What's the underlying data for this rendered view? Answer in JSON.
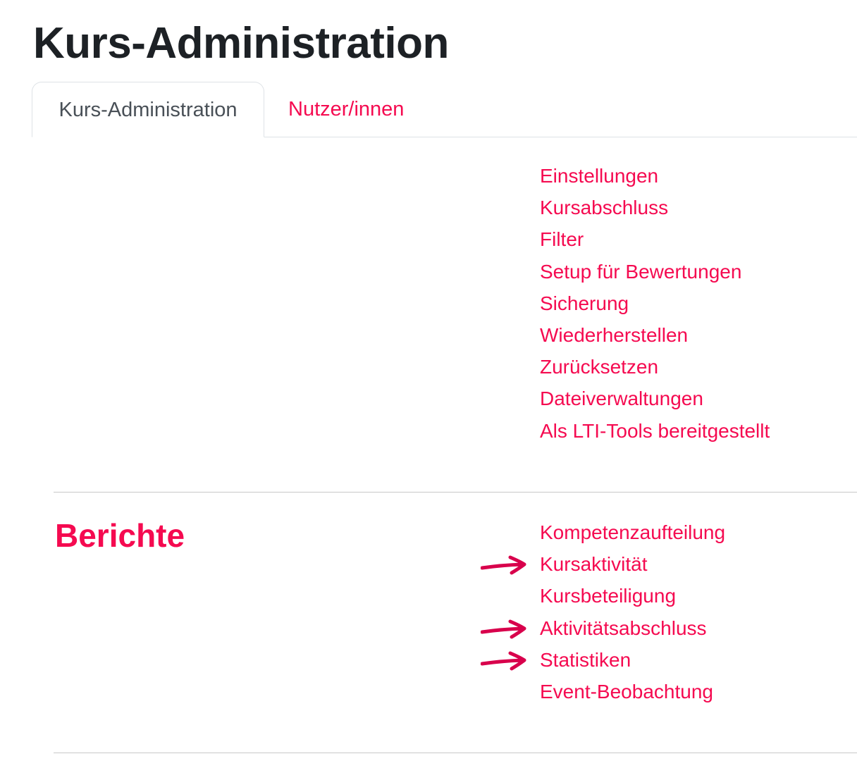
{
  "page_title": "Kurs-Administration",
  "tabs": [
    {
      "label": "Kurs-Administration",
      "active": true
    },
    {
      "label": "Nutzer/innen",
      "active": false
    }
  ],
  "course_section": {
    "links": [
      "Einstellungen",
      "Kursabschluss",
      "Filter",
      "Setup für Bewertungen",
      "Sicherung",
      "Wiederherstellen",
      "Zurücksetzen",
      "Dateiverwaltungen",
      "Als LTI-Tools bereitgestellt"
    ]
  },
  "reports_section": {
    "title": "Berichte",
    "links": [
      {
        "label": "Kompetenzaufteilung",
        "arrow": false
      },
      {
        "label": "Kursaktivität",
        "arrow": true
      },
      {
        "label": "Kursbeteiligung",
        "arrow": false
      },
      {
        "label": "Aktivitätsabschluss",
        "arrow": true
      },
      {
        "label": "Statistiken",
        "arrow": true
      },
      {
        "label": "Event-Beobachtung",
        "arrow": false
      }
    ]
  },
  "colors": {
    "link": "#f50a50",
    "arrow": "#d8004c",
    "title": "#1d2125"
  }
}
